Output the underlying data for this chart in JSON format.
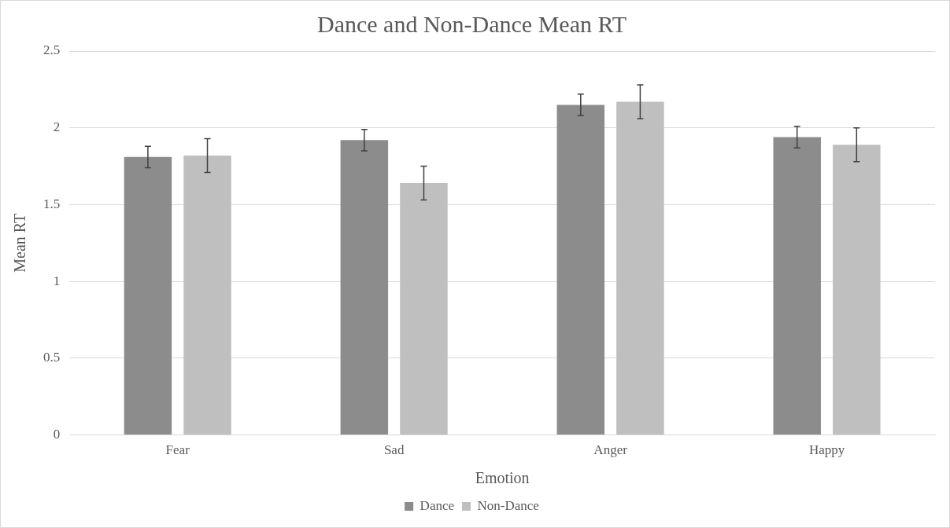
{
  "chart_data": {
    "type": "bar",
    "title": "Dance and Non-Dance Mean RT",
    "xlabel": "Emotion",
    "ylabel": "Mean RT",
    "categories": [
      "Fear",
      "Sad",
      "Anger",
      "Happy"
    ],
    "series": [
      {
        "name": "Dance",
        "color": "#8c8c8c",
        "values": [
          1.81,
          1.92,
          2.15,
          1.94
        ],
        "errors": [
          0.07,
          0.07,
          0.07,
          0.07
        ]
      },
      {
        "name": "Non-Dance",
        "color": "#bfbfbf",
        "values": [
          1.82,
          1.64,
          2.17,
          1.89
        ],
        "errors": [
          0.11,
          0.11,
          0.11,
          0.11
        ]
      }
    ],
    "ylim": [
      0,
      2.5
    ],
    "yticks": [
      0,
      0.5,
      1,
      1.5,
      2,
      2.5
    ],
    "grid": "y",
    "legend": "bottom"
  }
}
